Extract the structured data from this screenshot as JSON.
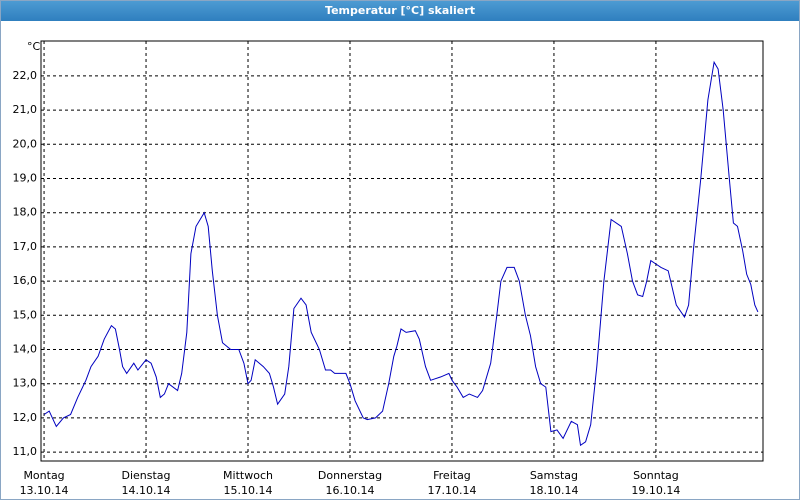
{
  "chart_data": {
    "type": "line",
    "title": "Temperatur [°C] skaliert",
    "y_unit": "°C",
    "color": "#0000c0",
    "grid": true,
    "xlim": [
      -0.03,
      7.05
    ],
    "ylim": [
      10.74,
      23.02
    ],
    "xticks": [
      0,
      1,
      2,
      3,
      4,
      5,
      6
    ],
    "weekdays": [
      "Montag",
      "Dienstag",
      "Mittwoch",
      "Donnerstag",
      "Freitag",
      "Samstag",
      "Sonntag"
    ],
    "dates": [
      "13.10.14",
      "14.10.14",
      "15.10.14",
      "16.10.14",
      "17.10.14",
      "18.10.14",
      "19.10.14"
    ],
    "yticks": [
      {
        "value": 11,
        "label": "11,0"
      },
      {
        "value": 12,
        "label": "12,0"
      },
      {
        "value": 13,
        "label": "13,0"
      },
      {
        "value": 14,
        "label": "14,0"
      },
      {
        "value": 15,
        "label": "15,0"
      },
      {
        "value": 16,
        "label": "16,0"
      },
      {
        "value": 17,
        "label": "17,0"
      },
      {
        "value": 18,
        "label": "18,0"
      },
      {
        "value": 19,
        "label": "19,0"
      },
      {
        "value": 20,
        "label": "20,0"
      },
      {
        "value": 21,
        "label": "21,0"
      },
      {
        "value": 22,
        "label": "22,0"
      }
    ],
    "x": [
      0,
      0.05,
      0.12,
      0.19,
      0.26,
      0.33,
      0.41,
      0.46,
      0.53,
      0.59,
      0.66,
      0.7,
      0.74,
      0.77,
      0.81,
      0.88,
      0.92,
      1,
      1.05,
      1.1,
      1.14,
      1.18,
      1.22,
      1.31,
      1.35,
      1.4,
      1.44,
      1.49,
      1.57,
      1.61,
      1.65,
      1.7,
      1.75,
      1.83,
      1.91,
      1.96,
      2,
      2.03,
      2.07,
      2.15,
      2.21,
      2.25,
      2.29,
      2.36,
      2.4,
      2.45,
      2.52,
      2.57,
      2.62,
      2.7,
      2.76,
      2.81,
      2.85,
      2.96,
      3,
      3.05,
      3.13,
      3.17,
      3.25,
      3.32,
      3.38,
      3.43,
      3.46,
      3.5,
      3.55,
      3.64,
      3.68,
      3.74,
      3.79,
      3.89,
      3.97,
      4,
      4.05,
      4.11,
      4.17,
      4.25,
      4.3,
      4.38,
      4.44,
      4.48,
      4.54,
      4.61,
      4.66,
      4.72,
      4.77,
      4.82,
      4.87,
      4.92,
      4.97,
      5.03,
      5.09,
      5.17,
      5.23,
      5.26,
      5.31,
      5.36,
      5.42,
      5.49,
      5.56,
      5.66,
      5.72,
      5.77,
      5.82,
      5.87,
      5.91,
      5.95,
      6,
      6.05,
      6.12,
      6.2,
      6.28,
      6.32,
      6.37,
      6.44,
      6.51,
      6.57,
      6.61,
      6.66,
      6.72,
      6.76,
      6.8,
      6.85,
      6.89,
      6.93,
      6.97,
      7
    ],
    "values": [
      12.1,
      12.2,
      11.75,
      12.0,
      12.1,
      12.6,
      13.1,
      13.5,
      13.8,
      14.3,
      14.7,
      14.6,
      14.0,
      13.5,
      13.3,
      13.6,
      13.4,
      13.7,
      13.6,
      13.2,
      12.6,
      12.7,
      13.0,
      12.8,
      13.3,
      14.5,
      16.8,
      17.6,
      18.0,
      17.6,
      16.3,
      15.0,
      14.2,
      14.0,
      14.0,
      13.6,
      13.0,
      13.1,
      13.7,
      13.5,
      13.3,
      12.9,
      12.4,
      12.7,
      13.5,
      15.2,
      15.5,
      15.3,
      14.5,
      14.0,
      13.4,
      13.4,
      13.3,
      13.3,
      13.0,
      12.5,
      12.0,
      11.95,
      12.0,
      12.2,
      13.0,
      13.8,
      14.1,
      14.6,
      14.5,
      14.55,
      14.3,
      13.5,
      13.1,
      13.2,
      13.3,
      13.1,
      12.9,
      12.6,
      12.7,
      12.6,
      12.8,
      13.6,
      15.0,
      16.0,
      16.4,
      16.4,
      16.0,
      15.0,
      14.4,
      13.5,
      13.0,
      12.9,
      11.6,
      11.65,
      11.4,
      11.9,
      11.8,
      11.2,
      11.3,
      11.8,
      13.5,
      16.0,
      17.8,
      17.6,
      16.8,
      16.0,
      15.6,
      15.55,
      16.0,
      16.6,
      16.5,
      16.4,
      16.3,
      15.3,
      14.95,
      15.3,
      17.0,
      19.0,
      21.3,
      22.4,
      22.2,
      21.0,
      19.0,
      17.7,
      17.6,
      16.9,
      16.2,
      15.9,
      15.3,
      15.1
    ]
  }
}
